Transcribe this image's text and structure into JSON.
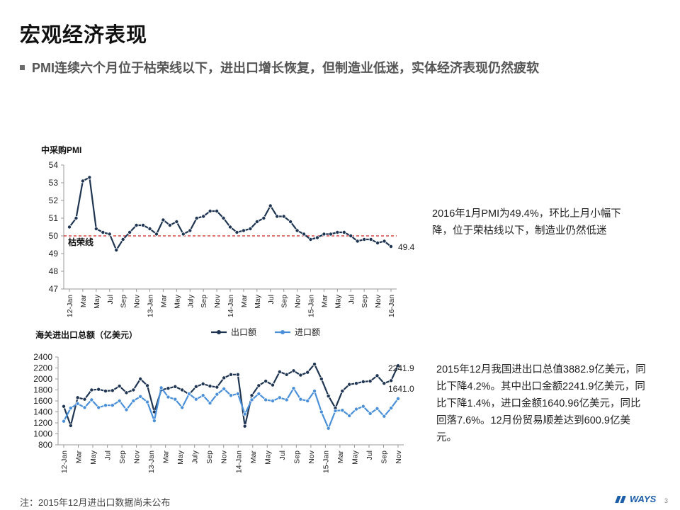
{
  "header": {
    "title": "宏观经济表现",
    "subtitle": "PMI连续六个月位于枯荣线以下，进出口增长恢复，但制造业低迷，实体经济表现仍然疲软"
  },
  "chart_data": [
    {
      "type": "line",
      "title": "中采购PMI",
      "ylim": [
        47,
        54
      ],
      "yticks": [
        "47",
        "48",
        "49",
        "50",
        "51",
        "52",
        "53",
        "54"
      ],
      "x_labels": [
        "12-Jan",
        "Mar",
        "May",
        "Jul",
        "Sep",
        "Nov",
        "13-Jan",
        "Mar",
        "May",
        "July",
        "Sep",
        "Nov",
        "14-Jan",
        "Mar",
        "May",
        "Jul",
        "Sep",
        "Nov",
        "15-Jan",
        "Mar",
        "May",
        "Jul",
        "Sep",
        "Nov",
        "16-Jan"
      ],
      "series": [
        {
          "name": "",
          "color": "#1f3552",
          "values": [
            50.5,
            51.0,
            53.1,
            53.3,
            50.4,
            50.2,
            50.1,
            49.2,
            49.8,
            50.2,
            50.6,
            50.6,
            50.4,
            50.1,
            50.9,
            50.6,
            50.8,
            50.1,
            50.3,
            51.0,
            51.1,
            51.4,
            51.4,
            51.0,
            50.5,
            50.2,
            50.3,
            50.4,
            50.8,
            51.0,
            51.7,
            51.1,
            51.1,
            50.8,
            50.3,
            50.1,
            49.8,
            49.9,
            50.1,
            50.1,
            50.2,
            50.2,
            50.0,
            49.7,
            49.8,
            49.8,
            49.6,
            49.7,
            49.4
          ]
        }
      ],
      "reference_line": {
        "value": 50,
        "label": "枯荣线",
        "color": "#cc1f1f"
      },
      "end_label": "49.4",
      "grid": false
    },
    {
      "type": "line",
      "title": "海关进出口总额（亿美元）",
      "ylim": [
        800,
        2400
      ],
      "yticks": [
        "800",
        "1000",
        "1200",
        "1400",
        "1600",
        "1800",
        "2000",
        "2200",
        "2400"
      ],
      "x_labels": [
        "12-Jan",
        "Mar",
        "May",
        "Jul",
        "Sep",
        "Nov",
        "13-Jan",
        "Mar",
        "May",
        "July",
        "Sep",
        "Nov",
        "14-Jan",
        "Mar",
        "May",
        "Jul",
        "Sep",
        "Nov",
        "15-Jan",
        "Mar",
        "May",
        "Jul",
        "Sep",
        "Nov"
      ],
      "legend_position": "top",
      "series": [
        {
          "name": "出口额",
          "color": "#1f3552",
          "values": [
            1500,
            1150,
            1660,
            1630,
            1800,
            1810,
            1780,
            1790,
            1870,
            1750,
            1800,
            2000,
            1880,
            1400,
            1800,
            1830,
            1860,
            1800,
            1720,
            1860,
            1910,
            1870,
            1850,
            2020,
            2080,
            2080,
            1140,
            1700,
            1880,
            1960,
            1890,
            2130,
            2080,
            2150,
            2070,
            2120,
            2270,
            2000,
            1690,
            1470,
            1780,
            1900,
            1920,
            1950,
            1960,
            2060,
            1920,
            1970,
            2242
          ]
        },
        {
          "name": "进口额",
          "color": "#4a90d9",
          "values": [
            1230,
            1470,
            1550,
            1480,
            1620,
            1480,
            1520,
            1520,
            1600,
            1440,
            1600,
            1680,
            1580,
            1240,
            1840,
            1670,
            1630,
            1480,
            1730,
            1630,
            1700,
            1560,
            1720,
            1820,
            1700,
            1730,
            1360,
            1620,
            1730,
            1620,
            1600,
            1660,
            1620,
            1830,
            1630,
            1600,
            1780,
            1400,
            1100,
            1420,
            1430,
            1330,
            1450,
            1500,
            1370,
            1460,
            1320,
            1470,
            1641
          ]
        }
      ],
      "end_labels": {
        "export": "2241.9",
        "import": "1641.0"
      },
      "grid": false
    }
  ],
  "notes": {
    "pmi": "2016年1月PMI为49.4%，环比上月小幅下降，位于荣枯线以下，制造业仍然低迷",
    "trade": "2015年12月我国进出口总值3882.9亿美元，同比下降4.2%。其中出口金额2241.9亿美元，同比下降1.4%，进口金额1640.96亿美元，同比回落7.6%。12月份贸易顺差达到600.9亿美元。"
  },
  "footer": {
    "footnote": "注：2015年12月进出口数据尚未公布",
    "logo": "WAYS",
    "page": "3"
  }
}
